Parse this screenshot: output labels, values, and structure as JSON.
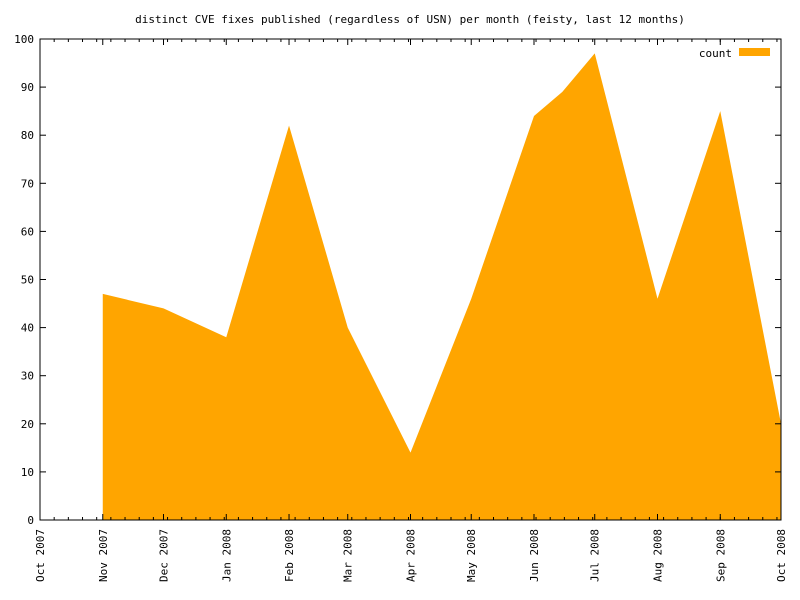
{
  "chart_data": {
    "type": "area",
    "title": "distinct CVE fixes published (regardless of USN) per month (feisty, last 12 months)",
    "xlabel": "",
    "ylabel": "",
    "x_tick_labels": [
      "Oct 2007",
      "Nov 2007",
      "Dec 2007",
      "Jan 2008",
      "Feb 2008",
      "Mar 2008",
      "Apr 2008",
      "May 2008",
      "Jun 2008",
      "Jul 2008",
      "Aug 2008",
      "Sep 2008",
      "Oct 2008"
    ],
    "y_ticks": [
      0,
      10,
      20,
      30,
      40,
      50,
      60,
      70,
      80,
      90,
      100
    ],
    "ylim": [
      0,
      100
    ],
    "xlim": [
      "2007-10-01",
      "2008-10-01"
    ],
    "grid": false,
    "legend_position": "top-right",
    "series": [
      {
        "name": "count",
        "color": "#ffa500",
        "points": [
          {
            "x": "2007-11-01",
            "y": 47
          },
          {
            "x": "2007-12-01",
            "y": 44
          },
          {
            "x": "2008-01-01",
            "y": 38
          },
          {
            "x": "2008-02-01",
            "y": 82
          },
          {
            "x": "2008-03-01",
            "y": 40
          },
          {
            "x": "2008-04-01",
            "y": 14
          },
          {
            "x": "2008-05-01",
            "y": 46
          },
          {
            "x": "2008-06-01",
            "y": 84
          },
          {
            "x": "2008-06-15",
            "y": 89
          },
          {
            "x": "2008-07-01",
            "y": 97
          },
          {
            "x": "2008-08-01",
            "y": 46
          },
          {
            "x": "2008-09-01",
            "y": 85
          },
          {
            "x": "2008-10-01",
            "y": 20
          }
        ]
      }
    ]
  }
}
